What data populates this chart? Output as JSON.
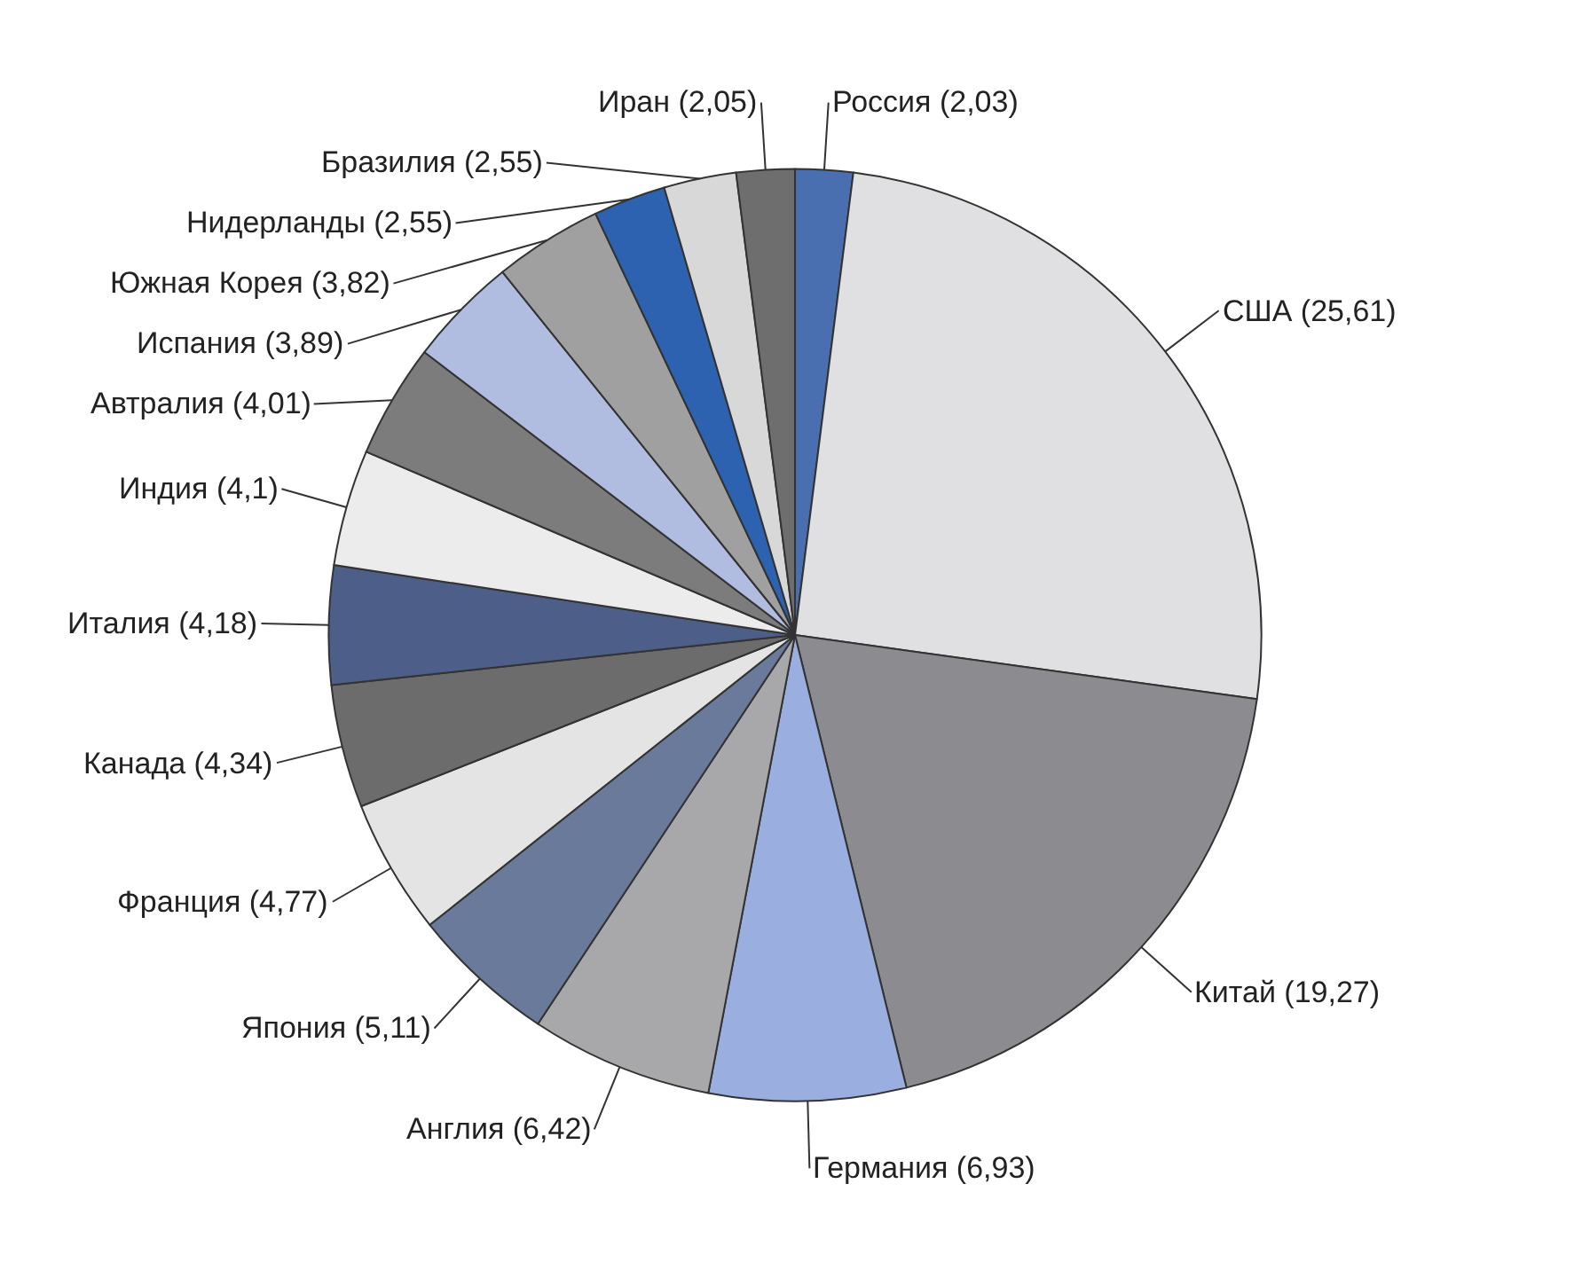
{
  "chart_data": {
    "type": "pie",
    "categories": [
      "Россия (2,03)",
      "США (25,61)",
      "Китай (19,27)",
      "Германия (6,93)",
      "Англия (6,42)",
      "Япония (5,11)",
      "Франция (4,77)",
      "Канада (4,34)",
      "Италия (4,18)",
      "Индия (4,1)",
      "Автралия (4,01)",
      "Испания (3,89)",
      "Южная Корея (3,82)",
      "Нидерланды (2,55)",
      "Бразилия (2,55)",
      "Иран (2,05)"
    ],
    "values": [
      2.03,
      25.61,
      19.27,
      6.93,
      6.42,
      5.11,
      4.77,
      4.34,
      4.18,
      4.1,
      4.01,
      3.89,
      3.82,
      2.55,
      2.55,
      2.05
    ],
    "colors": [
      "#4a6fb0",
      "#e0e0e2",
      "#8c8c90",
      "#9aaee0",
      "#a8a8aa",
      "#6a7a9a",
      "#e4e4e4",
      "#6c6c6c",
      "#4d5e88",
      "#ececec",
      "#7c7c7c",
      "#b0bce0",
      "#a0a0a0",
      "#2d62b0",
      "#d8d8d8",
      "#6e6e6e"
    ],
    "legend": false
  }
}
